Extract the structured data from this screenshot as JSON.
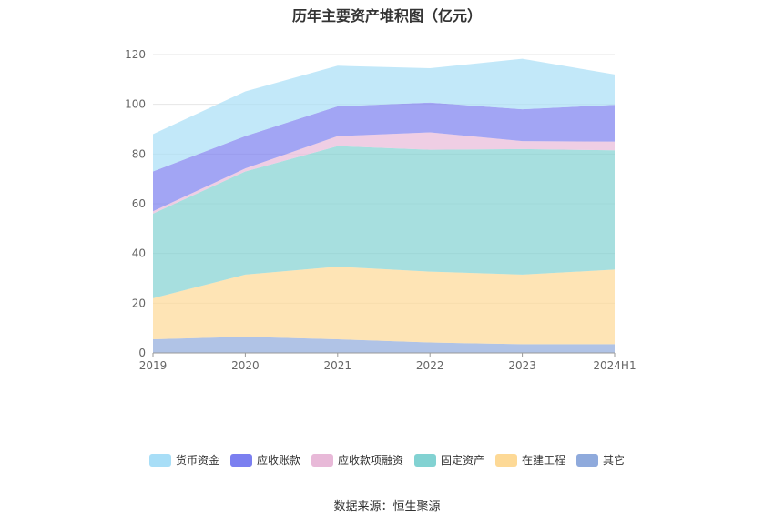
{
  "title": "历年主要资产堆积图（亿元）",
  "source": "数据来源：恒生聚源",
  "chart_data": {
    "type": "area",
    "stacked": true,
    "categories": [
      "2019",
      "2020",
      "2021",
      "2022",
      "2023",
      "2024H1"
    ],
    "ylim": [
      0,
      120
    ],
    "yticks": [
      0,
      20,
      40,
      60,
      80,
      100,
      120
    ],
    "grid": true,
    "legend_position": "bottom",
    "series": [
      {
        "name": "其它",
        "color": "#8faadc",
        "values": [
          5.5,
          6.5,
          5.5,
          4.2,
          3.5,
          3.5
        ]
      },
      {
        "name": "在建工程",
        "color": "#fdd996",
        "values": [
          16.5,
          25,
          29.2,
          28.5,
          28,
          30
        ]
      },
      {
        "name": "固定资产",
        "color": "#82d2d2",
        "values": [
          34,
          41.5,
          48.5,
          49,
          50.5,
          48
        ]
      },
      {
        "name": "应收款项融资",
        "color": "#e8b9d8",
        "values": [
          1,
          1.2,
          4,
          7,
          3.2,
          3.5
        ]
      },
      {
        "name": "应收账款",
        "color": "#7b7ff0",
        "values": [
          16,
          13,
          12,
          12,
          12.8,
          14.8
        ]
      },
      {
        "name": "货币资金",
        "color": "#a8def7",
        "values": [
          15,
          18,
          16.3,
          13.8,
          20.3,
          12.2
        ]
      }
    ]
  }
}
